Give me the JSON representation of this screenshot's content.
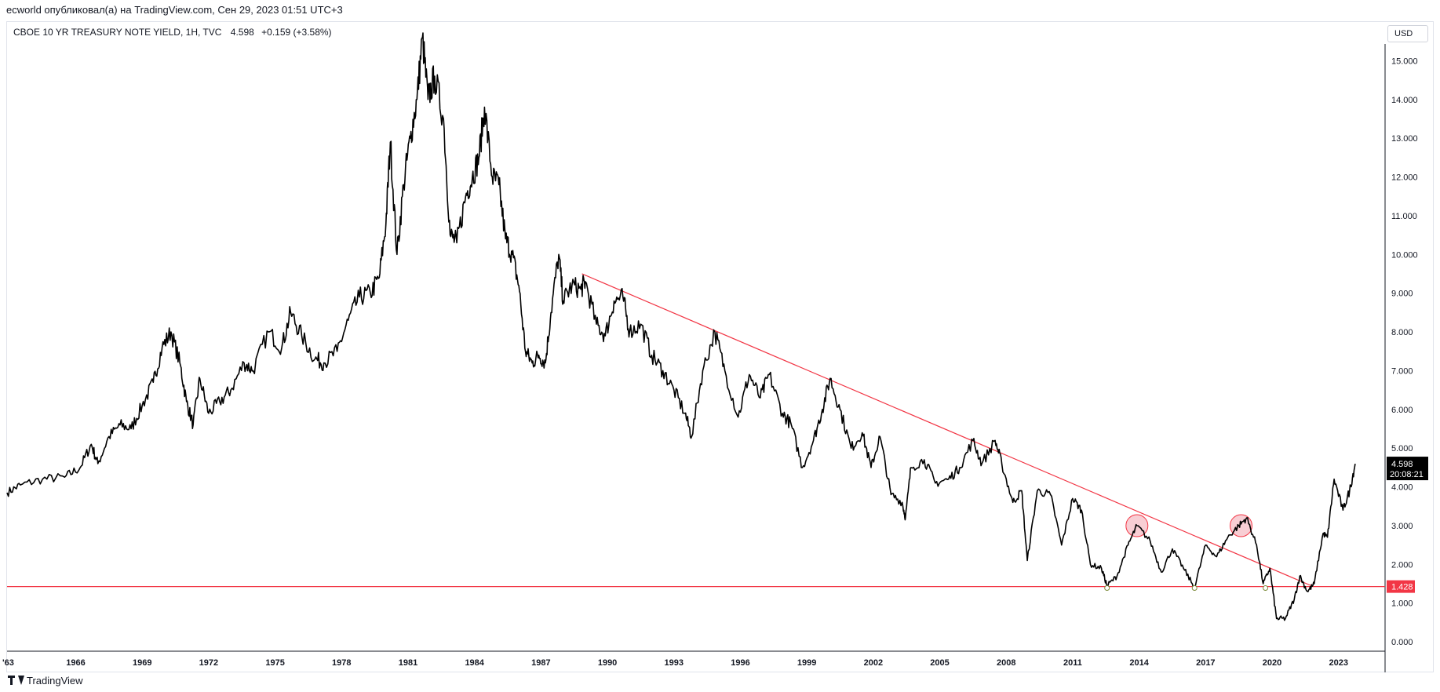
{
  "caption": "ecworld опубликовал(а) на TradingView.com, Сен 29, 2023 01:51 UTC+3",
  "legend": {
    "symbol": "CBOE 10 YR TREASURY NOTE YIELD, 1H, TVC",
    "last": "4.598",
    "change": "+0.159 (+3.58%)"
  },
  "currency_button": "USD",
  "brand": "TradingView",
  "colors": {
    "series": "#000000",
    "trendline": "#f23645",
    "support_line": "#f23645",
    "highlight_circle": "#f7c6cc",
    "price_badge_bg": "#000000",
    "level_badge_bg": "#f23645"
  },
  "price_badge": {
    "price": "4.598",
    "countdown": "20:08:21"
  },
  "level_badge": {
    "price": "1.428"
  },
  "chart_data": {
    "type": "line",
    "y_scale": "linear",
    "ylim": [
      -0.2,
      16.0
    ],
    "xlim": [
      1962.9,
      2025.1
    ],
    "x_tick_labels": [
      "'63",
      "1966",
      "1969",
      "1972",
      "1975",
      "1978",
      "1981",
      "1984",
      "1987",
      "1990",
      "1993",
      "1996",
      "1999",
      "2002",
      "2005",
      "2008",
      "2011",
      "2014",
      "2017",
      "2020",
      "2023"
    ],
    "x_tick_years": [
      1962.95,
      1966,
      1969,
      1972,
      1975,
      1978,
      1981,
      1984,
      1987,
      1990,
      1993,
      1996,
      1999,
      2002,
      2005,
      2008,
      2011,
      2014,
      2017,
      2020,
      2023
    ],
    "y_ticks": [
      "0.000",
      "1.000",
      "2.000",
      "3.000",
      "4.000",
      "5.000",
      "6.000",
      "7.000",
      "8.000",
      "9.000",
      "10.000",
      "11.000",
      "12.000",
      "13.000",
      "14.000",
      "15.000"
    ],
    "y_tick_values": [
      0,
      1,
      2,
      3,
      4,
      5,
      6,
      7,
      8,
      9,
      10,
      11,
      12,
      13,
      14,
      15
    ],
    "series": [
      {
        "points": [
          [
            1962.9,
            3.85
          ],
          [
            1963.5,
            4.05
          ],
          [
            1964.5,
            4.2
          ],
          [
            1965.5,
            4.25
          ],
          [
            1966.2,
            4.5
          ],
          [
            1966.7,
            5.1
          ],
          [
            1967.0,
            4.6
          ],
          [
            1967.5,
            5.3
          ],
          [
            1968.0,
            5.6
          ],
          [
            1968.5,
            5.5
          ],
          [
            1969.0,
            6.1
          ],
          [
            1969.5,
            6.7
          ],
          [
            1969.9,
            7.6
          ],
          [
            1970.3,
            8.0
          ],
          [
            1970.7,
            7.2
          ],
          [
            1971.0,
            6.2
          ],
          [
            1971.3,
            5.6
          ],
          [
            1971.6,
            6.8
          ],
          [
            1972.0,
            5.9
          ],
          [
            1972.5,
            6.2
          ],
          [
            1973.0,
            6.5
          ],
          [
            1973.6,
            7.2
          ],
          [
            1974.0,
            7.0
          ],
          [
            1974.7,
            8.0
          ],
          [
            1975.3,
            7.6
          ],
          [
            1975.7,
            8.5
          ],
          [
            1976.2,
            7.9
          ],
          [
            1976.8,
            7.3
          ],
          [
            1977.2,
            7.2
          ],
          [
            1977.8,
            7.5
          ],
          [
            1978.3,
            8.3
          ],
          [
            1978.8,
            8.9
          ],
          [
            1979.3,
            9.0
          ],
          [
            1979.7,
            9.4
          ],
          [
            1980.0,
            10.8
          ],
          [
            1980.2,
            12.9
          ],
          [
            1980.5,
            10.0
          ],
          [
            1980.8,
            11.8
          ],
          [
            1981.1,
            13.0
          ],
          [
            1981.4,
            14.0
          ],
          [
            1981.65,
            15.6
          ],
          [
            1981.9,
            14.0
          ],
          [
            1982.2,
            14.6
          ],
          [
            1982.6,
            13.5
          ],
          [
            1982.9,
            10.5
          ],
          [
            1983.2,
            10.3
          ],
          [
            1983.6,
            11.5
          ],
          [
            1983.9,
            12.0
          ],
          [
            1984.2,
            12.5
          ],
          [
            1984.45,
            13.8
          ],
          [
            1984.8,
            12.0
          ],
          [
            1985.1,
            11.8
          ],
          [
            1985.4,
            10.4
          ],
          [
            1985.7,
            10.0
          ],
          [
            1986.0,
            9.2
          ],
          [
            1986.3,
            7.5
          ],
          [
            1986.6,
            7.2
          ],
          [
            1986.9,
            7.4
          ],
          [
            1987.2,
            7.2
          ],
          [
            1987.45,
            8.5
          ],
          [
            1987.8,
            10.0
          ],
          [
            1988.0,
            8.8
          ],
          [
            1988.4,
            9.2
          ],
          [
            1988.8,
            9.1
          ],
          [
            1989.0,
            9.3
          ],
          [
            1989.5,
            8.2
          ],
          [
            1989.9,
            7.9
          ],
          [
            1990.3,
            8.8
          ],
          [
            1990.7,
            8.9
          ],
          [
            1991.0,
            8.0
          ],
          [
            1991.5,
            8.2
          ],
          [
            1992.0,
            7.4
          ],
          [
            1992.5,
            7.0
          ],
          [
            1993.0,
            6.5
          ],
          [
            1993.5,
            5.9
          ],
          [
            1993.8,
            5.3
          ],
          [
            1994.3,
            7.0
          ],
          [
            1994.85,
            8.0
          ],
          [
            1995.3,
            7.0
          ],
          [
            1995.9,
            5.8
          ],
          [
            1996.4,
            6.9
          ],
          [
            1996.9,
            6.3
          ],
          [
            1997.3,
            6.9
          ],
          [
            1997.9,
            5.9
          ],
          [
            1998.3,
            5.6
          ],
          [
            1998.8,
            4.5
          ],
          [
            1999.3,
            5.2
          ],
          [
            1999.7,
            6.0
          ],
          [
            2000.05,
            6.8
          ],
          [
            2000.5,
            6.0
          ],
          [
            2001.0,
            5.0
          ],
          [
            2001.5,
            5.4
          ],
          [
            2001.9,
            4.5
          ],
          [
            2002.3,
            5.3
          ],
          [
            2002.8,
            3.8
          ],
          [
            2003.3,
            3.6
          ],
          [
            2003.45,
            3.2
          ],
          [
            2003.7,
            4.5
          ],
          [
            2004.3,
            4.7
          ],
          [
            2004.8,
            4.1
          ],
          [
            2005.4,
            4.2
          ],
          [
            2005.9,
            4.5
          ],
          [
            2006.5,
            5.2
          ],
          [
            2006.9,
            4.6
          ],
          [
            2007.5,
            5.2
          ],
          [
            2007.8,
            4.6
          ],
          [
            2008.3,
            3.6
          ],
          [
            2008.7,
            3.9
          ],
          [
            2008.95,
            2.1
          ],
          [
            2009.4,
            3.9
          ],
          [
            2010.0,
            3.8
          ],
          [
            2010.5,
            2.5
          ],
          [
            2011.0,
            3.7
          ],
          [
            2011.4,
            3.4
          ],
          [
            2011.8,
            2.0
          ],
          [
            2012.3,
            1.9
          ],
          [
            2012.55,
            1.45
          ],
          [
            2013.0,
            1.7
          ],
          [
            2013.5,
            2.5
          ],
          [
            2013.9,
            3.0
          ],
          [
            2014.5,
            2.6
          ],
          [
            2015.0,
            1.8
          ],
          [
            2015.5,
            2.4
          ],
          [
            2016.0,
            1.9
          ],
          [
            2016.5,
            1.4
          ],
          [
            2017.0,
            2.5
          ],
          [
            2017.5,
            2.2
          ],
          [
            2018.0,
            2.7
          ],
          [
            2018.5,
            3.0
          ],
          [
            2018.85,
            3.2
          ],
          [
            2019.3,
            2.5
          ],
          [
            2019.6,
            1.5
          ],
          [
            2019.9,
            1.9
          ],
          [
            2020.2,
            0.6
          ],
          [
            2020.6,
            0.6
          ],
          [
            2021.0,
            1.1
          ],
          [
            2021.25,
            1.7
          ],
          [
            2021.6,
            1.3
          ],
          [
            2021.9,
            1.5
          ],
          [
            2022.3,
            2.8
          ],
          [
            2022.5,
            2.7
          ],
          [
            2022.8,
            4.2
          ],
          [
            2023.2,
            3.4
          ],
          [
            2023.5,
            3.9
          ],
          [
            2023.75,
            4.598
          ]
        ]
      }
    ],
    "annotations": {
      "trendline": {
        "from": [
          1988.85,
          9.5
        ],
        "to": [
          2021.85,
          1.43
        ]
      },
      "support_level": 1.428,
      "highlight_circles": [
        [
          2013.9,
          3.0
        ],
        [
          2018.6,
          3.0
        ]
      ],
      "touch_markers": [
        [
          2012.55,
          1.43
        ],
        [
          2016.5,
          1.43
        ],
        [
          2019.7,
          1.43
        ]
      ]
    }
  }
}
